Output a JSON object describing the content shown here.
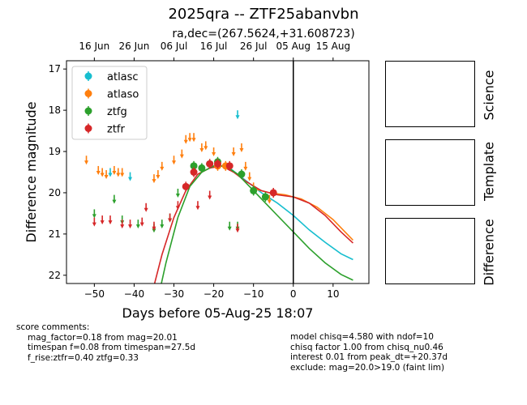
{
  "title": "2025qra -- ZTF25abanvbn",
  "subtitle": "ra,dec=(267.5624,+31.608723)",
  "colors": {
    "atlasc": "#17becf",
    "atlaso": "#ff7f0e",
    "ztfg": "#2ca02c",
    "ztfr": "#d62728"
  },
  "chart_data": {
    "type": "scatter",
    "xlabel": "Days before 05-Aug-25 18:07",
    "ylabel": "Difference magnitude",
    "xlim": [
      -57,
      19
    ],
    "ylim": [
      22.2,
      16.8
    ],
    "y_inverted": true,
    "x_ticks": [
      -50,
      -40,
      -30,
      -20,
      -10,
      0,
      10
    ],
    "y_ticks": [
      17,
      18,
      19,
      20,
      21,
      22
    ],
    "top_axis_ticks": [
      {
        "label": "16 Jun",
        "x": -50
      },
      {
        "label": "26 Jun",
        "x": -40
      },
      {
        "label": "06 Jul",
        "x": -30
      },
      {
        "label": "16 Jul",
        "x": -20
      },
      {
        "label": "26 Jul",
        "x": -10
      },
      {
        "label": "05 Aug",
        "x": 0
      },
      {
        "label": "15 Aug",
        "x": 10
      }
    ],
    "vertical_line_x": 0,
    "legend": {
      "placement": "top-left",
      "entries": [
        "atlasc",
        "atlaso",
        "ztfg",
        "ztfr"
      ]
    },
    "series": [
      {
        "name": "atlasc",
        "color": "#17becf",
        "detections": [],
        "upper_limits": [
          [
            -46,
            19.5
          ],
          [
            -41,
            19.6
          ],
          [
            -14,
            18.1
          ]
        ]
      },
      {
        "name": "atlaso",
        "color": "#ff7f0e",
        "detections": [
          [
            -19,
            19.35
          ],
          [
            -17,
            19.35
          ]
        ],
        "upper_limits": [
          [
            -52,
            19.2
          ],
          [
            -49,
            19.45
          ],
          [
            -48,
            19.5
          ],
          [
            -47,
            19.55
          ],
          [
            -45,
            19.45
          ],
          [
            -44,
            19.5
          ],
          [
            -43,
            19.5
          ],
          [
            -35,
            19.65
          ],
          [
            -34,
            19.55
          ],
          [
            -33,
            19.35
          ],
          [
            -30,
            19.2
          ],
          [
            -28,
            19.05
          ],
          [
            -27,
            18.7
          ],
          [
            -26,
            18.65
          ],
          [
            -25,
            18.65
          ],
          [
            -23,
            18.9
          ],
          [
            -22,
            18.85
          ],
          [
            -20,
            19.0
          ],
          [
            -15,
            19.0
          ],
          [
            -13,
            18.9
          ],
          [
            -12,
            19.35
          ],
          [
            -11,
            19.6
          ],
          [
            -10,
            19.85
          ],
          [
            -6,
            20.15
          ]
        ]
      },
      {
        "name": "ztfg",
        "color": "#2ca02c",
        "detections": [
          [
            -25,
            19.35
          ],
          [
            -23,
            19.4
          ],
          [
            -21,
            19.3
          ],
          [
            -19,
            19.25
          ],
          [
            -13,
            19.55
          ],
          [
            -10,
            19.95
          ],
          [
            -7,
            20.1
          ]
        ],
        "upper_limits": [
          [
            -50,
            20.5
          ],
          [
            -45,
            20.15
          ],
          [
            -43,
            20.65
          ],
          [
            -39,
            20.75
          ],
          [
            -35,
            20.85
          ],
          [
            -33,
            20.75
          ],
          [
            -31,
            20.6
          ],
          [
            -29,
            20.0
          ],
          [
            -16,
            20.8
          ],
          [
            -14,
            20.8
          ]
        ]
      },
      {
        "name": "ztfr",
        "color": "#d62728",
        "detections": [
          [
            -27,
            19.85
          ],
          [
            -25,
            19.5
          ],
          [
            -21,
            19.3
          ],
          [
            -19,
            19.3
          ],
          [
            -16,
            19.35
          ],
          [
            -5,
            20.0
          ]
        ],
        "upper_limits": [
          [
            -50,
            20.7
          ],
          [
            -48,
            20.65
          ],
          [
            -46,
            20.65
          ],
          [
            -43,
            20.75
          ],
          [
            -41,
            20.75
          ],
          [
            -38,
            20.7
          ],
          [
            -37,
            20.35
          ],
          [
            -35,
            20.8
          ],
          [
            -31,
            20.6
          ],
          [
            -29,
            20.3
          ],
          [
            -24,
            20.3
          ],
          [
            -21,
            20.05
          ],
          [
            -14,
            20.85
          ]
        ]
      }
    ],
    "models": [
      {
        "name": "atlasc",
        "color": "#17becf",
        "points": [
          [
            -16,
            19.4
          ],
          [
            -12,
            19.7
          ],
          [
            -8,
            20.0
          ],
          [
            -4,
            20.25
          ],
          [
            0,
            20.55
          ],
          [
            4,
            20.9
          ],
          [
            8,
            21.2
          ],
          [
            12,
            21.48
          ],
          [
            15,
            21.62
          ]
        ]
      },
      {
        "name": "atlaso",
        "color": "#ff7f0e",
        "points": [
          [
            -10,
            19.9
          ],
          [
            -6,
            20.0
          ],
          [
            -2,
            20.05
          ],
          [
            2,
            20.15
          ],
          [
            6,
            20.35
          ],
          [
            10,
            20.65
          ],
          [
            14,
            21.05
          ],
          [
            15,
            21.15
          ]
        ]
      },
      {
        "name": "ztfr",
        "color": "#d62728",
        "points": [
          [
            -37,
            23.0
          ],
          [
            -33,
            21.5
          ],
          [
            -30,
            20.6
          ],
          [
            -27,
            19.95
          ],
          [
            -24,
            19.55
          ],
          [
            -21,
            19.4
          ],
          [
            -18,
            19.35
          ],
          [
            -15,
            19.5
          ],
          [
            -12,
            19.72
          ],
          [
            -8,
            19.95
          ],
          [
            -4,
            20.05
          ],
          [
            0,
            20.1
          ],
          [
            4,
            20.25
          ],
          [
            8,
            20.55
          ],
          [
            12,
            20.95
          ],
          [
            15,
            21.22
          ]
        ]
      },
      {
        "name": "ztfg",
        "color": "#2ca02c",
        "points": [
          [
            -35,
            23.0
          ],
          [
            -32,
            21.7
          ],
          [
            -29,
            20.6
          ],
          [
            -26,
            19.85
          ],
          [
            -23,
            19.5
          ],
          [
            -20,
            19.35
          ],
          [
            -17,
            19.35
          ],
          [
            -14,
            19.55
          ],
          [
            -11,
            19.85
          ],
          [
            -8,
            20.15
          ],
          [
            -4,
            20.55
          ],
          [
            0,
            20.95
          ],
          [
            4,
            21.35
          ],
          [
            8,
            21.7
          ],
          [
            12,
            21.98
          ],
          [
            15,
            22.12
          ]
        ]
      }
    ]
  },
  "side_panels": [
    "Science",
    "Template",
    "Difference"
  ],
  "score_comments": {
    "heading": "score comments:",
    "lines": [
      "mag_factor=0.18 from mag=20.01",
      "timespan f=0.08 from timespan=27.5d",
      "f_rise:ztfr=0.40 ztfg=0.33"
    ]
  },
  "model_comments": [
    "model chisq=4.580 with ndof=10",
    "chisq factor 1.00 from chisq_nu0.46",
    "interest 0.01 from peak_dt=+20.37d",
    "exclude: mag=20.0>19.0 (faint lim)"
  ]
}
